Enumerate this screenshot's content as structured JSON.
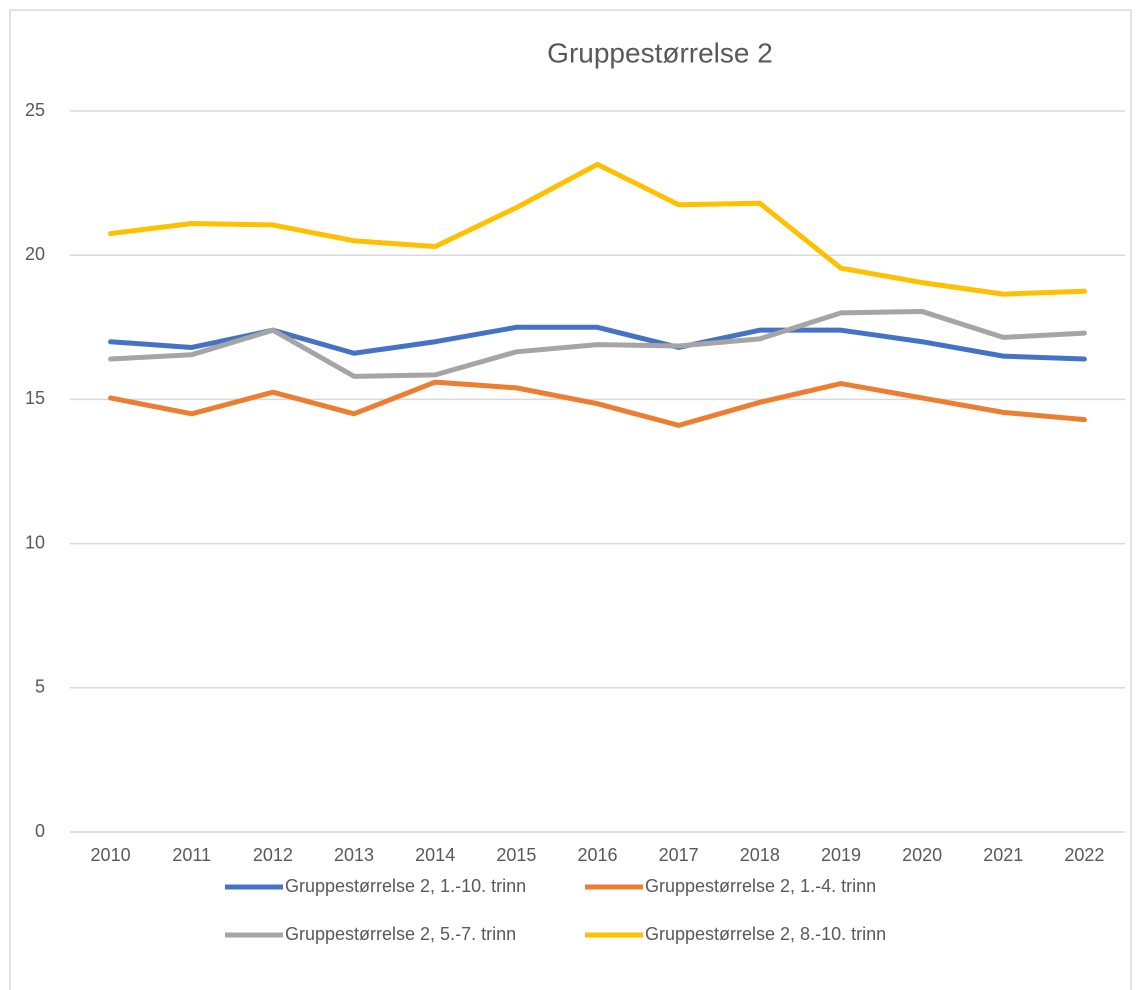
{
  "chart_data": {
    "type": "line",
    "title": "Gruppestørrelse 2",
    "categories": [
      "2010",
      "2011",
      "2012",
      "2013",
      "2014",
      "2015",
      "2016",
      "2017",
      "2018",
      "2019",
      "2020",
      "2021",
      "2022"
    ],
    "series": [
      {
        "name": "Gruppestørrelse 2, 1.-10. trinn",
        "color": "#4472c4",
        "values": [
          17.0,
          16.8,
          17.4,
          16.6,
          17.0,
          17.5,
          17.5,
          16.8,
          17.4,
          17.4,
          17.0,
          16.5,
          16.4
        ]
      },
      {
        "name": "Gruppestørrelse 2, 1.-4. trinn",
        "color": "#ed7d31",
        "values": [
          15.05,
          14.5,
          15.25,
          14.5,
          15.6,
          15.4,
          14.85,
          14.1,
          14.9,
          15.55,
          15.05,
          14.55,
          14.3
        ]
      },
      {
        "name": "Gruppestørrelse 2, 5.-7. trinn",
        "color": "#a5a5a5",
        "values": [
          16.4,
          16.55,
          17.4,
          15.8,
          15.85,
          16.65,
          16.9,
          16.85,
          17.1,
          18.0,
          18.05,
          17.15,
          17.3
        ]
      },
      {
        "name": "Gruppestørrelse 2, 8.-10. trinn",
        "color": "#ffc000",
        "values": [
          20.75,
          21.1,
          21.05,
          20.5,
          20.3,
          21.65,
          23.15,
          21.75,
          21.8,
          19.55,
          19.05,
          18.65,
          18.75
        ]
      }
    ],
    "ylim": [
      0,
      25
    ],
    "yticks": [
      0,
      5,
      10,
      15,
      20,
      25
    ],
    "grid": true,
    "legend": "bottom"
  }
}
